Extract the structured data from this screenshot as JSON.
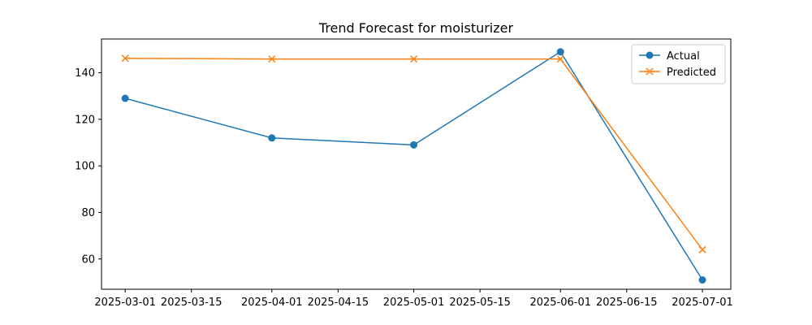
{
  "chart_data": {
    "type": "line",
    "title": "Trend Forecast for moisturizer",
    "xlabel": "",
    "ylabel": "",
    "x": [
      "2025-03-01",
      "2025-04-01",
      "2025-05-01",
      "2025-06-01",
      "2025-07-01"
    ],
    "xlim": [
      "2025-02-24",
      "2025-07-07"
    ],
    "ylim": [
      47,
      154.5
    ],
    "x_ticks": [
      "2025-03-01",
      "2025-03-15",
      "2025-04-01",
      "2025-04-15",
      "2025-05-01",
      "2025-05-15",
      "2025-06-01",
      "2025-06-15",
      "2025-07-01"
    ],
    "y_ticks": [
      60,
      80,
      100,
      120,
      140
    ],
    "grid": false,
    "legend_position": "upper right",
    "series": [
      {
        "name": "Actual",
        "values": [
          129,
          112,
          109,
          149,
          51
        ],
        "color": "#1f77b4",
        "marker": "circle"
      },
      {
        "name": "Predicted",
        "values": [
          146.2,
          145.9,
          145.9,
          145.9,
          64
        ],
        "color": "#ff7f0e",
        "marker": "x"
      }
    ]
  }
}
